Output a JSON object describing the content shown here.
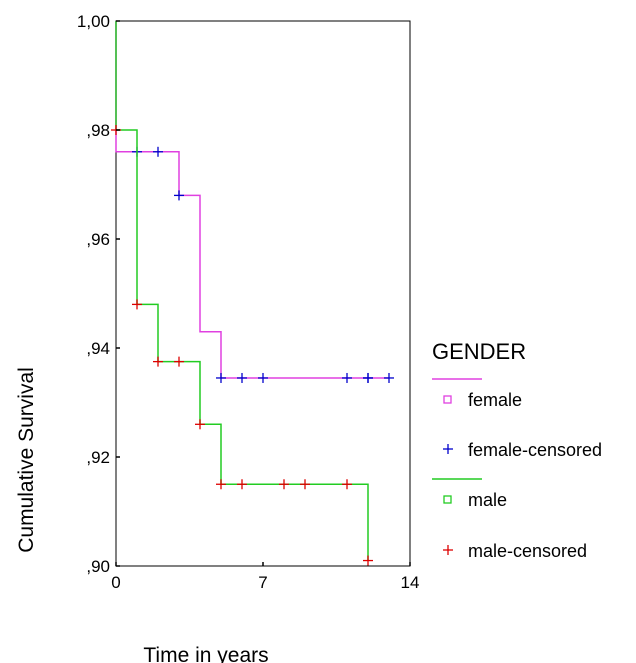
{
  "chart_data": {
    "type": "line",
    "title": "",
    "xlabel": "Time in years",
    "ylabel": "Cumulative Survival",
    "xlim": [
      0,
      14
    ],
    "ylim": [
      0.9,
      1.0
    ],
    "x_ticks": [
      {
        "value": 0,
        "label": "0"
      },
      {
        "value": 7,
        "label": "7"
      },
      {
        "value": 14,
        "label": "14"
      }
    ],
    "y_ticks": [
      {
        "value": 0.9,
        "label": ",90"
      },
      {
        "value": 0.92,
        "label": ",92"
      },
      {
        "value": 0.94,
        "label": ",94"
      },
      {
        "value": 0.96,
        "label": ",96"
      },
      {
        "value": 0.98,
        "label": ",98"
      },
      {
        "value": 1.0,
        "label": "1,00"
      }
    ],
    "grid": false,
    "legend_placement": "right",
    "legend": {
      "title": "GENDER",
      "entries": [
        {
          "label": "female",
          "kind": "line",
          "color": "#e040e0"
        },
        {
          "label": "female-censored",
          "kind": "censor",
          "color": "#0000cc"
        },
        {
          "label": "male",
          "kind": "line",
          "color": "#22cc22"
        },
        {
          "label": "male-censored",
          "kind": "censor",
          "color": "#dd0000"
        }
      ]
    },
    "series": [
      {
        "key": "female",
        "color": "#e040e0",
        "censor_color": "#0000cc",
        "steps": [
          [
            0,
            1.0
          ],
          [
            0,
            0.976
          ],
          [
            3,
            0.976
          ],
          [
            3,
            0.968
          ],
          [
            4,
            0.968
          ],
          [
            4,
            0.943
          ],
          [
            5,
            0.943
          ],
          [
            5,
            0.9345
          ],
          [
            13,
            0.9345
          ]
        ],
        "censored": [
          [
            1,
            0.976
          ],
          [
            2,
            0.976
          ],
          [
            3,
            0.968
          ],
          [
            5,
            0.9345
          ],
          [
            6,
            0.9345
          ],
          [
            7,
            0.9345
          ],
          [
            11,
            0.9345
          ],
          [
            12,
            0.9345
          ],
          [
            12,
            0.9345
          ],
          [
            13,
            0.9345
          ]
        ]
      },
      {
        "key": "male",
        "color": "#22cc22",
        "censor_color": "#dd0000",
        "steps": [
          [
            0,
            1.0
          ],
          [
            0,
            0.98
          ],
          [
            1,
            0.98
          ],
          [
            1,
            0.948
          ],
          [
            2,
            0.948
          ],
          [
            2,
            0.9375
          ],
          [
            4,
            0.9375
          ],
          [
            4,
            0.926
          ],
          [
            5,
            0.926
          ],
          [
            5,
            0.915
          ],
          [
            12,
            0.915
          ],
          [
            12,
            0.901
          ]
        ],
        "censored": [
          [
            0,
            0.98
          ],
          [
            1,
            0.948
          ],
          [
            2,
            0.9375
          ],
          [
            3,
            0.9375
          ],
          [
            4,
            0.926
          ],
          [
            5,
            0.915
          ],
          [
            6,
            0.915
          ],
          [
            8,
            0.915
          ],
          [
            9,
            0.915
          ],
          [
            11,
            0.915
          ],
          [
            12,
            0.901
          ]
        ]
      }
    ]
  }
}
